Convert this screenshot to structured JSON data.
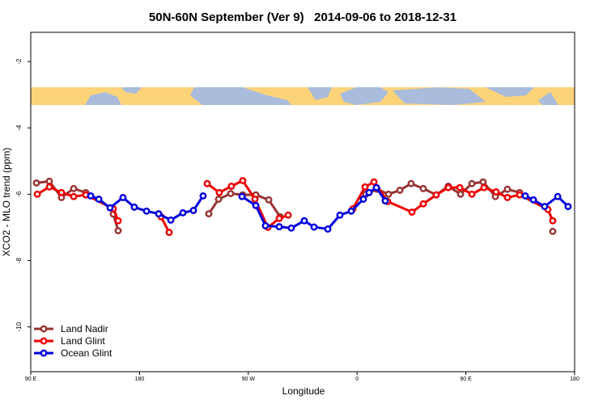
{
  "chart_data": {
    "type": "line",
    "title": "50N-60N September (Ver 9)   2014-09-06 to 2018-12-31",
    "x_label": "Longitude",
    "y_label": "XCO2 - MLO trend (ppm)",
    "xlim": [
      90,
      540
    ],
    "ylim": [
      -11.35,
      -1.12
    ],
    "xticks": [
      {
        "value": 90,
        "label": "90 E"
      },
      {
        "value": 180,
        "label": "180"
      },
      {
        "value": 270,
        "label": "90 W"
      },
      {
        "value": 360,
        "label": "0"
      },
      {
        "value": 450,
        "label": "90 E"
      },
      {
        "value": 540,
        "label": "180"
      }
    ],
    "yticks": [
      -10,
      -8,
      -6,
      -4,
      -2
    ],
    "legend": "lower left",
    "series": [
      {
        "name": "Land Nadir",
        "color": "#993333",
        "x": [
          94.7,
          105.4,
          115.4,
          125.5,
          135.5,
          150,
          158.3,
          162.3,
          200,
          237.3,
          245.4,
          255.4,
          265.4,
          276.2,
          286.9,
          296.3,
          330,
          367.2,
          376.6,
          386,
          395.4,
          404.7,
          414.8,
          425.5,
          435.5,
          445.6,
          455,
          464.3,
          474.4,
          484.4,
          494.5,
          510,
          521.9
        ],
        "values": [
          -5.66,
          -5.61,
          -6.1,
          -5.83,
          -5.95,
          null,
          -6.6,
          -7.1,
          null,
          -6.59,
          -6.15,
          -5.98,
          -6.02,
          -6.02,
          -6.17,
          -6.68,
          null,
          -6.0,
          -5.85,
          -6.0,
          -5.88,
          -5.68,
          -5.83,
          -6.02,
          -5.76,
          -6.0,
          -5.68,
          -5.63,
          -6.07,
          -5.85,
          -5.95,
          null,
          -7.12
        ]
      },
      {
        "name": "Land Glint",
        "color": "#ee0000",
        "x": [
          95.4,
          105.4,
          115.4,
          125.5,
          135.5,
          158.3,
          162.3,
          180,
          197.8,
          204.5,
          220,
          236,
          246,
          256,
          265.4,
          275.5,
          286.2,
          295.6,
          303,
          330,
          356.5,
          366.6,
          374,
          385.3,
          405.4,
          414.8,
          425.5,
          435.5,
          445,
          455,
          465,
          475,
          484.4,
          494.5,
          517.9,
          521.9
        ],
        "values": [
          -6.0,
          -5.78,
          -5.95,
          -6.07,
          -6.02,
          -6.44,
          -6.8,
          null,
          -6.68,
          -7.15,
          null,
          -5.68,
          -5.95,
          -5.76,
          -5.59,
          -6.15,
          -7.0,
          -6.73,
          -6.63,
          null,
          -6.44,
          -5.78,
          -5.63,
          -6.22,
          -6.54,
          -6.29,
          -6.02,
          -5.8,
          -5.8,
          -6.0,
          -5.8,
          -5.93,
          -6.1,
          -6.02,
          -6.46,
          -6.8
        ]
      },
      {
        "name": "Ocean Glint",
        "color": "#0000dd",
        "x": [
          139.6,
          146.3,
          155.6,
          166.3,
          175.7,
          185.8,
          195.8,
          205.9,
          215.9,
          224.6,
          232.6,
          250,
          264.8,
          276.2,
          284.2,
          295.6,
          305.6,
          316.3,
          324.4,
          335.8,
          345.8,
          355.2,
          365.2,
          369.9,
          376,
          383.3,
          450,
          499.2,
          505.9,
          515.2,
          526,
          534.6
        ],
        "values": [
          -6.05,
          -6.15,
          -6.41,
          -6.1,
          -6.39,
          -6.51,
          -6.59,
          -6.78,
          -6.56,
          -6.49,
          -6.05,
          null,
          -6.07,
          -6.34,
          -6.95,
          -6.98,
          -7.02,
          -6.8,
          -6.99,
          -7.05,
          -6.63,
          -6.51,
          -6.15,
          -5.95,
          -5.8,
          -6.2,
          null,
          -6.05,
          -6.17,
          -6.37,
          -6.07,
          -6.37
        ]
      }
    ]
  }
}
